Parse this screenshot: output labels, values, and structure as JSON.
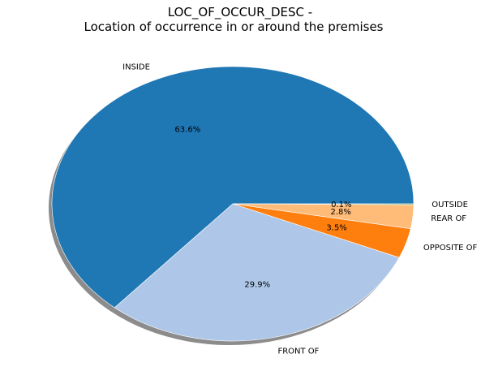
{
  "chart_data": {
    "type": "pie",
    "title": "LOC_OF_OCCUR_DESC -",
    "subtitle": "Location of occurrence in or around the premises",
    "start_angle_deg": 0,
    "direction": "counterclockwise",
    "shadow": true,
    "categories": [
      "INSIDE",
      "FRONT OF",
      "OPPOSITE OF",
      "REAR OF",
      "OUTSIDE"
    ],
    "values": [
      63.6,
      29.9,
      3.5,
      2.8,
      0.1
    ],
    "value_labels": [
      "63.6%",
      "29.9%",
      "3.5%",
      "2.8%",
      "0.1%"
    ],
    "colors": [
      "#1f77b4",
      "#aec7e8",
      "#ff7f0e",
      "#ffbb78",
      "#2ca02c"
    ]
  }
}
